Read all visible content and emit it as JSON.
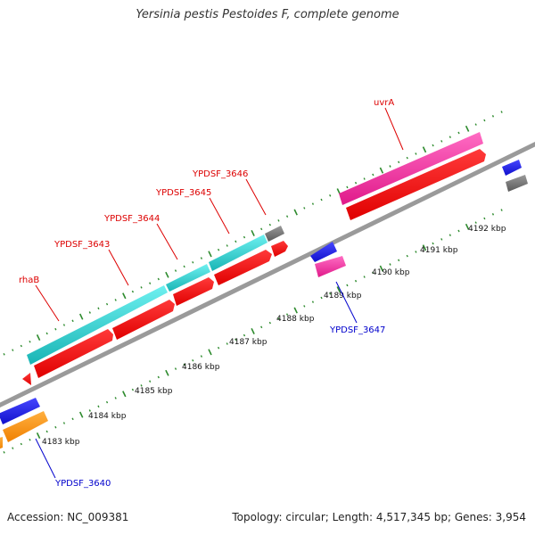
{
  "title": "Yersinia pestis Pestoides F, complete genome",
  "footer": {
    "accession": "Accession: NC_009381",
    "summary": "Topology: circular; Length: 4,517,345 bp; Genes: 3,954"
  },
  "ruler_labels": [
    "4183 kbp",
    "4184 kbp",
    "4185 kbp",
    "4186 kbp",
    "4187 kbp",
    "4188 kbp",
    "4189 kbp",
    "4190 kbp",
    "4191 kbp",
    "4192 kbp"
  ],
  "gene_labels": {
    "rhaB": "rhaB",
    "ypdsf_3643": "YPDSF_3643",
    "ypdsf_3644": "YPDSF_3644",
    "ypdsf_3645": "YPDSF_3645",
    "ypdsf_3646": "YPDSF_3646",
    "uvrA": "uvrA",
    "ypdsf_3647": "YPDSF_3647",
    "ypdsf_3640": "YPDSF_3640"
  },
  "colors": {
    "backbone": "#999999",
    "tick": "#2e8b2e",
    "cds": "#ff0000",
    "cyan": "#22c4c4",
    "magenta": "#ee2b9a",
    "blue": "#1a1adc",
    "orange": "#ff8c00",
    "gray": "#707070",
    "label_red": "#dd0000",
    "label_blue": "#0000cc"
  }
}
